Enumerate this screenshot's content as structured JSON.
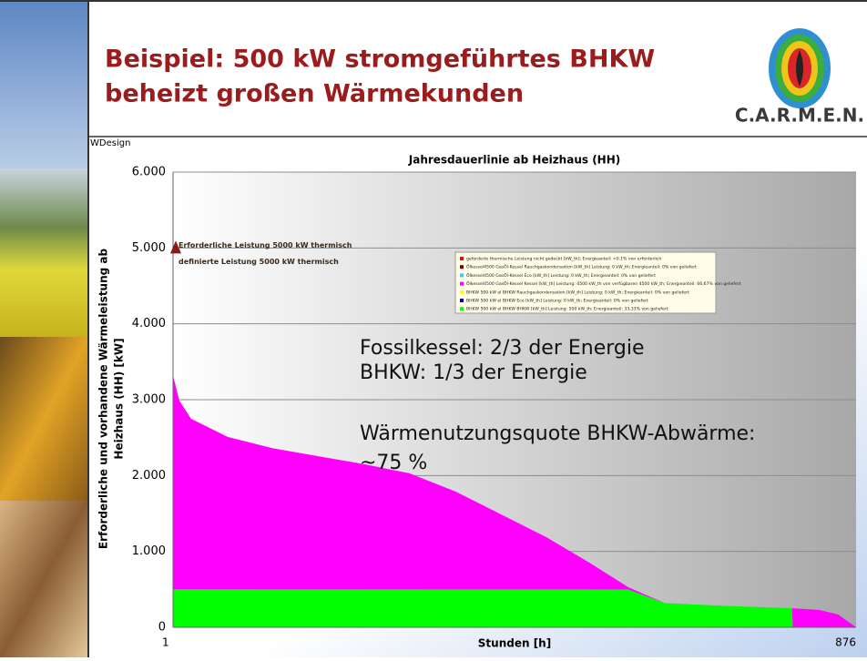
{
  "header": {
    "title_lines": [
      "Beispiel: 500 kW stromgeführtes BHKW",
      "beheizt großen Wärmekunden"
    ],
    "logo": "C.A.R.M.E.N.",
    "watermark": "WDesign"
  },
  "chart_data": {
    "type": "stacked_area",
    "title": "Jahresdauerlinie ab Heizhaus (HH)",
    "y_label_lines": [
      "Erforderliche und vorhandene Wärmeleistung ab",
      "Heizhaus (HH) [kW]"
    ],
    "x_label": "Stunden [h]",
    "x": [
      1,
      9,
      24,
      71,
      129,
      246,
      304,
      363,
      421,
      479,
      538,
      584,
      631,
      713,
      794,
      795,
      829,
      853,
      876
    ],
    "series": [
      {
        "color": "#00ff00",
        "values": [
          500,
          500,
          500,
          500,
          500,
          500,
          500,
          500,
          500,
          500,
          500,
          500,
          320,
          280,
          250,
          0,
          0,
          0,
          0
        ]
      },
      {
        "color": "#ff00ff",
        "values": [
          2820,
          2490,
          2250,
          2010,
          1860,
          1650,
          1530,
          1290,
          990,
          690,
          330,
          30,
          0,
          0,
          0,
          250,
          230,
          170,
          0
        ]
      }
    ],
    "legend": [
      {
        "name": "geforderte thermische Leistung nicht gedeckt [kW_th]; Energieanteil: <0.1% von erforderlich",
        "color": "#e01010"
      },
      {
        "name": "Ölkessel4500 GasÖl-Kessel Rauchgaskondensation [kW_th] Leistung: 0 kW_th; Energieanteil: 0% von geliefert",
        "color": "#800000"
      },
      {
        "name": "Ölkessel4500 GasÖl-Kessel Eco [kW_th] Leistung: 0 kW_th; Energieanteil: 0% von geliefert",
        "color": "#33ccff"
      },
      {
        "name": "Ölkessel4500 GasÖl-Kessel Kessel [kW_th] Leistung: 4500 kW_th von verfügbaren 4500 kW_th; Energieanteil: 66,67% von geliefert",
        "color": "#ff00ff"
      },
      {
        "name": "BHKW 500 kW el BHKW Rauchgaskondensation [kW_th] Leistung: 0 kW_th; Energieanteil: 0% von geliefert",
        "color": "#ffff00"
      },
      {
        "name": "BHKW 500 kW el BHKW Eco [kW_th] Leistung: 0 kW_th; Energieanteil: 0% von geliefert",
        "color": "#0000cc"
      },
      {
        "name": "BHKW 500 kW el BHKW BHKW [kW_th] Leistung: 500 kW_th; Energieanteil: 33,33% von geliefert",
        "color": "#00ff00"
      }
    ],
    "marker_point": {
      "x": 1,
      "y": 5000,
      "color": "#8b1a1a"
    },
    "marker_labels": [
      "Erforderliche Leistung 5000 kW thermisch",
      "definierte Leistung 5000 kW thermisch"
    ],
    "annotations": [
      "Fossilkessel: 2/3 der Energie",
      "BHKW: 1/3 der Energie",
      "Wärmenutzungsquote BHKW-Abwärme:",
      "~75 %"
    ],
    "xlim": [
      1,
      876
    ],
    "xticks": [
      1,
      876
    ],
    "ylim": [
      0,
      6000
    ],
    "yticks": [
      0,
      {
        "value": 1000,
        "label": "1.000"
      },
      {
        "value": 2000,
        "label": "2.000"
      },
      {
        "value": 3000,
        "label": "3.000"
      },
      {
        "value": 4000,
        "label": "4.000"
      },
      {
        "value": 5000,
        "label": "5.000"
      },
      {
        "value": 6000,
        "label": "6.000"
      }
    ],
    "grid": true
  }
}
